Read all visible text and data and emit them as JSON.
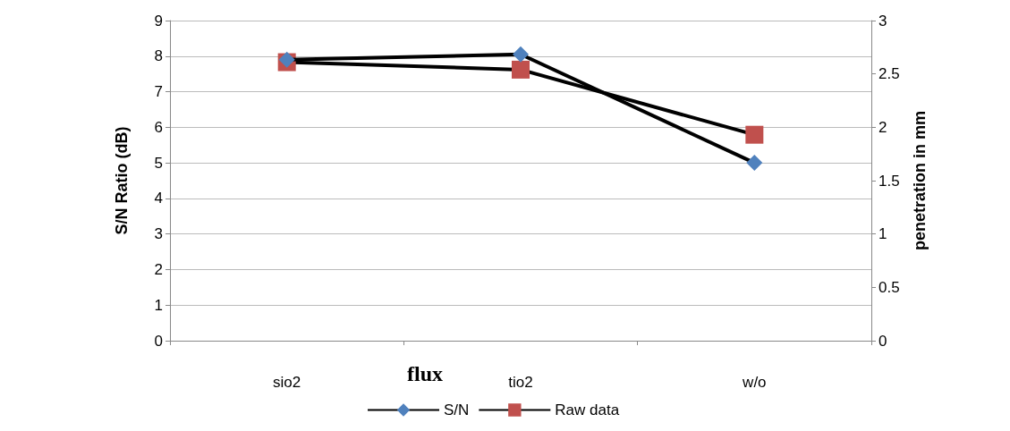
{
  "chart_data": {
    "type": "line",
    "xlabel": "flux",
    "ylabel": "S/N Ratio (dB)",
    "y2label": "penetration in mm",
    "categories": [
      "sio2",
      "tio2",
      "w/o"
    ],
    "series": [
      {
        "name": "S/N",
        "color": "#4f81bd",
        "marker": "diamond",
        "values": [
          7.9,
          8.05,
          5.0
        ]
      },
      {
        "name": "Raw data",
        "color": "#c0504d",
        "marker": "square",
        "axis": "y2",
        "values": [
          2.61,
          2.54,
          1.93
        ]
      }
    ],
    "ylim": [
      0,
      9
    ],
    "yticks": [
      0,
      1,
      2,
      3,
      4,
      5,
      6,
      7,
      8,
      9
    ],
    "y2lim": [
      0,
      3
    ],
    "y2ticks": [
      0,
      0.5,
      1,
      1.5,
      2,
      2.5,
      3
    ],
    "grid": "y",
    "legend": "bottom"
  }
}
